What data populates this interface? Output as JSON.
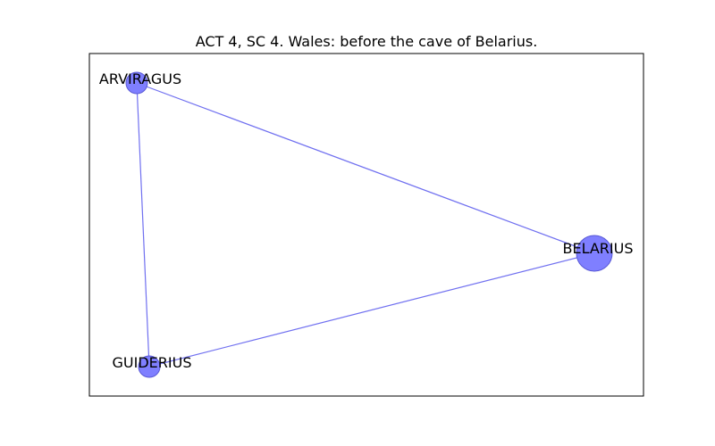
{
  "title": "ACT 4, SC 4. Wales: before the cave of Belarius.",
  "colors": {
    "node_fill": "#7f7fff",
    "node_stroke": "#5a5ad6",
    "edge": "#7070f0",
    "frame": "#000000"
  },
  "nodes": [
    {
      "id": "arviragus",
      "label": "ARVIRAGUS"
    },
    {
      "id": "belarius",
      "label": "BELARIUS"
    },
    {
      "id": "guiderius",
      "label": "GUIDERIUS"
    }
  ],
  "edges": [
    {
      "source": "arviragus",
      "target": "belarius"
    },
    {
      "source": "arviragus",
      "target": "guiderius"
    },
    {
      "source": "guiderius",
      "target": "belarius"
    }
  ]
}
